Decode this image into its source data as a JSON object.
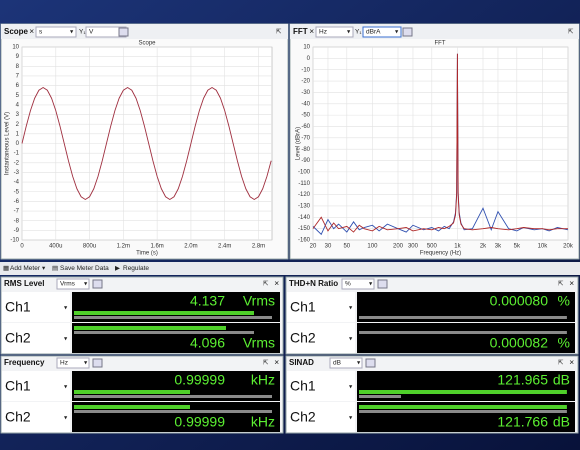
{
  "panels": {
    "scope": {
      "title": "Scope",
      "x_unit": "s",
      "y_label": "Y₁",
      "y_unit": "V"
    },
    "fft": {
      "title": "FFT",
      "x_unit": "Hz",
      "y_label": "Y₁",
      "y_unit": "dBrA"
    }
  },
  "chart_data": [
    {
      "type": "line",
      "title": "Scope",
      "x_label": "Time (s)",
      "y_label": "Instantaneous Level (V)",
      "x": [
        0,
        5e-05,
        0.0001,
        0.00015,
        0.0002,
        0.00025,
        0.0003,
        0.00035,
        0.0004,
        0.00045,
        0.0005,
        0.00055,
        0.0006,
        0.00065,
        0.0007,
        0.00075,
        0.0008,
        0.00085,
        0.0009,
        0.00095,
        0.001,
        0.00105,
        0.0011,
        0.00115,
        0.0012,
        0.00125,
        0.0013,
        0.00135,
        0.0014,
        0.00145,
        0.0015,
        0.00155,
        0.0016,
        0.00165,
        0.0017,
        0.00175,
        0.0018,
        0.00185,
        0.0019,
        0.00195,
        0.002,
        0.00205,
        0.0021,
        0.00215,
        0.0022,
        0.00225,
        0.0023,
        0.00235,
        0.0024,
        0.00245,
        0.0025,
        0.00255,
        0.0026,
        0.00265,
        0.0027,
        0.00275,
        0.0028,
        0.00285,
        0.0029,
        0.00295
      ],
      "series": [
        {
          "color": "#a03040",
          "values": [
            0,
            1.79,
            3.41,
            4.69,
            5.52,
            5.8,
            5.52,
            4.69,
            3.41,
            1.79,
            0,
            -1.79,
            -3.41,
            -4.69,
            -5.52,
            -5.8,
            -5.52,
            -4.69,
            -3.41,
            -1.79,
            0,
            1.79,
            3.41,
            4.69,
            5.52,
            5.8,
            5.52,
            4.69,
            3.41,
            1.79,
            0,
            -1.79,
            -3.41,
            -4.69,
            -5.52,
            -5.8,
            -5.52,
            -4.69,
            -3.41,
            -1.79,
            0,
            1.79,
            3.41,
            4.69,
            5.52,
            5.8,
            5.52,
            4.69,
            3.41,
            1.79,
            0,
            -1.79,
            -3.41,
            -4.69,
            -5.52,
            -5.8,
            -5.52,
            -4.69,
            -3.41,
            -1.79
          ]
        }
      ],
      "xlim": [
        0,
        0.00296
      ],
      "ylim": [
        -10,
        10
      ],
      "xticks": [
        0,
        {
          "value": 0.0004,
          "label": "400u"
        },
        {
          "value": 0.0008,
          "label": "800u"
        },
        {
          "value": 0.0012,
          "label": "1.2m"
        },
        {
          "value": 0.0016,
          "label": "1.6m"
        },
        {
          "value": 0.002,
          "label": "2.0m"
        },
        {
          "value": 0.0024,
          "label": "2.4m"
        },
        {
          "value": 0.0028,
          "label": "2.8m"
        }
      ],
      "yticks": [
        10,
        9,
        8,
        7,
        6,
        5,
        4,
        3,
        2,
        1,
        0,
        -1,
        -2,
        -3,
        -4,
        -5,
        -6,
        -7,
        -8,
        -9,
        -10
      ],
      "grid": true,
      "xlog": false
    },
    {
      "type": "line",
      "title": "FFT",
      "x_label": "Frequency (Hz)",
      "y_label": "Level (dBrA)",
      "x": [
        20,
        25,
        30,
        35,
        40,
        50,
        60,
        70,
        80,
        100,
        120,
        150,
        200,
        250,
        300,
        400,
        500,
        600,
        700,
        800,
        900,
        950,
        980,
        1000,
        1020,
        1050,
        1100,
        1200,
        1500,
        2000,
        2500,
        3000,
        4000,
        5000,
        6000,
        8000,
        10000,
        12000,
        15000,
        20000
      ],
      "series": [
        {
          "color": "#3050b0",
          "values": [
            -148,
            -155,
            -142,
            -150,
            -146,
            -153,
            -144,
            -151,
            -149,
            -147,
            -152,
            -146,
            -150,
            -153,
            -147,
            -151,
            -149,
            -152,
            -148,
            -150,
            -144,
            -136,
            -118,
            4,
            -118,
            -136,
            -145,
            -151,
            -150,
            -132,
            -151,
            -135,
            -150,
            -152,
            -149,
            -151,
            -150,
            -152,
            -149,
            -151
          ]
        },
        {
          "color": "#b02828",
          "values": [
            -150,
            -140,
            -152,
            -145,
            -150,
            -148,
            -153,
            -147,
            -150,
            -152,
            -148,
            -151,
            -150,
            -149,
            -152,
            -150,
            -151,
            -149,
            -150,
            -148,
            -145,
            -138,
            -120,
            4,
            -120,
            -138,
            -146,
            -150,
            -151,
            -150,
            -149,
            -150,
            -151,
            -150,
            -149,
            -150,
            -150,
            -151,
            -150,
            -150
          ]
        }
      ],
      "xlim": [
        20,
        20000
      ],
      "ylim": [
        -160,
        10
      ],
      "xticks": [
        20,
        30,
        50,
        100,
        200,
        300,
        500,
        {
          "value": 1000,
          "label": "1k"
        },
        {
          "value": 2000,
          "label": "2k"
        },
        {
          "value": 3000,
          "label": "3k"
        },
        {
          "value": 5000,
          "label": "5k"
        },
        {
          "value": 10000,
          "label": "10k"
        },
        {
          "value": 20000,
          "label": "20k"
        }
      ],
      "yticks": [
        10,
        0,
        -10,
        -20,
        -30,
        -40,
        -50,
        -60,
        -70,
        -80,
        -90,
        -100,
        -110,
        -120,
        -130,
        -140,
        -150,
        -160
      ],
      "grid": true,
      "xlog": true
    }
  ],
  "toolbar": {
    "add_meter": "Add Meter",
    "save": "Save Meter Data",
    "regulate": "Regulate"
  },
  "meters": [
    {
      "title": "RMS Level",
      "unit_select": "Vrms",
      "rows": [
        {
          "channel": "Ch1",
          "reading": "4.137",
          "unit": "Vrms"
        },
        {
          "channel": "Ch2",
          "reading": "4.096",
          "unit": "Vrms"
        }
      ]
    },
    {
      "title": "THD+N Ratio",
      "unit_select": "%",
      "rows": [
        {
          "channel": "Ch1",
          "reading": "0.000080",
          "unit": "%"
        },
        {
          "channel": "Ch2",
          "reading": "0.000082",
          "unit": "%"
        }
      ]
    },
    {
      "title": "Frequency",
      "unit_select": "Hz",
      "rows": [
        {
          "channel": "Ch1",
          "reading": "0.99999",
          "unit": "kHz"
        },
        {
          "channel": "Ch2",
          "reading": "0.99999",
          "unit": "kHz"
        }
      ]
    },
    {
      "title": "SINAD",
      "unit_select": "dB",
      "rows": [
        {
          "channel": "Ch1",
          "reading": "121.965",
          "unit": "dB"
        },
        {
          "channel": "Ch2",
          "reading": "121.766",
          "unit": "dB"
        }
      ]
    }
  ]
}
